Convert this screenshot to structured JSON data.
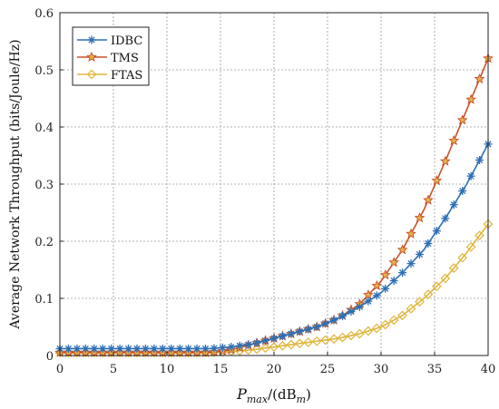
{
  "chart_data": {
    "type": "line",
    "title": "",
    "xlabel": "P_max/(dB_m)",
    "xlabel_parts": {
      "main": "P",
      "main_sub": "max",
      "mid": "/(dB",
      "mid_sub": "m",
      "end": ")"
    },
    "ylabel": "Average Network Throughput (bits/Joule/Hz)",
    "xlim": [
      0,
      40
    ],
    "ylim": [
      0,
      0.6
    ],
    "xticks": [
      0,
      5,
      10,
      15,
      20,
      25,
      30,
      35,
      40
    ],
    "yticks": [
      0,
      0.1,
      0.2,
      0.3,
      0.4,
      0.5,
      0.6
    ],
    "grid": true,
    "legend_position": "top-left",
    "x": [
      0,
      2,
      4,
      6,
      8,
      10,
      12,
      14,
      16,
      18,
      20,
      22,
      24,
      26,
      28,
      30,
      32,
      34,
      36,
      38,
      40
    ],
    "series": [
      {
        "name": "IDBC",
        "color": "#2e6fb5",
        "marker": "asterisk",
        "values": [
          0.012,
          0.012,
          0.012,
          0.012,
          0.012,
          0.012,
          0.012,
          0.012,
          0.015,
          0.02,
          0.03,
          0.04,
          0.05,
          0.065,
          0.085,
          0.11,
          0.145,
          0.185,
          0.24,
          0.3,
          0.37
        ]
      },
      {
        "name": "TMS",
        "color": "#c8502a",
        "marker": "star",
        "values": [
          0.005,
          0.005,
          0.005,
          0.005,
          0.005,
          0.005,
          0.005,
          0.005,
          0.01,
          0.02,
          0.03,
          0.04,
          0.05,
          0.065,
          0.09,
          0.13,
          0.185,
          0.255,
          0.34,
          0.43,
          0.52
        ]
      },
      {
        "name": "FTAS",
        "color": "#e0b53c",
        "marker": "diamond",
        "values": [
          0.005,
          0.005,
          0.005,
          0.005,
          0.005,
          0.005,
          0.005,
          0.005,
          0.007,
          0.01,
          0.015,
          0.02,
          0.025,
          0.03,
          0.038,
          0.05,
          0.07,
          0.1,
          0.135,
          0.18,
          0.23
        ]
      }
    ]
  }
}
